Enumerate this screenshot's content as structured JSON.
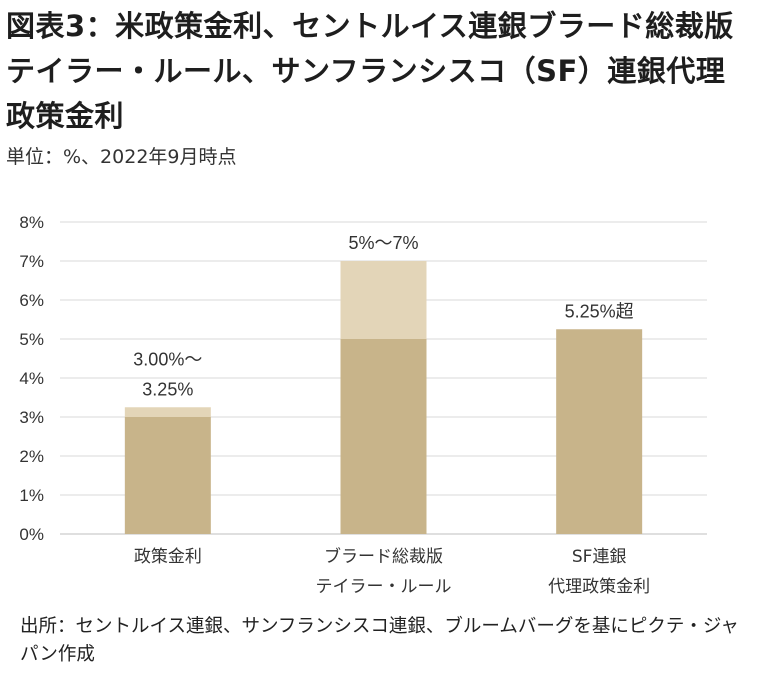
{
  "title": "図表3：米政策金利、セントルイス連銀ブラード総裁版テイラー・ルール、サンフランシスコ（SF）連銀代理政策金利",
  "subtitle": "単位：%、2022年9月時点",
  "source": "出所：セントルイス連銀、サンフランシスコ連銀、ブルームバーグを基にピクテ・ジャパン作成",
  "colors": {
    "base": "#c8b48a",
    "range": "#e3d5b8",
    "grid": "#d9d9d9",
    "axis": "#bfbfbf",
    "text": "#333333"
  },
  "chart_data": {
    "type": "bar",
    "stacked": true,
    "ylim": [
      0,
      8
    ],
    "yticks": [
      "0%",
      "1%",
      "2%",
      "3%",
      "4%",
      "5%",
      "6%",
      "7%",
      "8%"
    ],
    "grid": true,
    "categories": [
      [
        "政策金利"
      ],
      [
        "ブラード総裁版",
        "テイラー・ルール"
      ],
      [
        "SF連銀",
        "代理政策金利"
      ]
    ],
    "series": [
      {
        "values": [
          3.0,
          5.0,
          5.25
        ]
      },
      {
        "values": [
          0.25,
          2.0,
          0
        ]
      }
    ],
    "data_labels": [
      [
        "3.00%～",
        "3.25%"
      ],
      [
        "5%～7%"
      ],
      [
        "5.25%超"
      ]
    ]
  }
}
